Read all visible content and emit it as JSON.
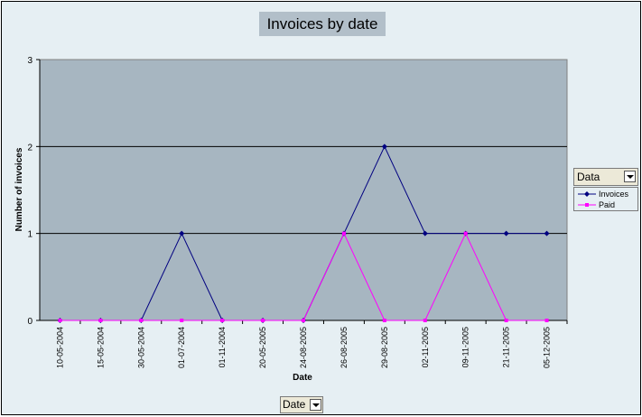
{
  "chart_data": {
    "type": "line",
    "title": "Invoices by date",
    "xlabel": "Date",
    "ylabel": "Number of invoices",
    "categories": [
      "10-05-2004",
      "15-05-2004",
      "30-05-2004",
      "01-07-2004",
      "01-11-2004",
      "20-05-2005",
      "24-08-2005",
      "26-08-2005",
      "29-08-2005",
      "02-11-2005",
      "09-11-2005",
      "21-11-2005",
      "05-12-2005"
    ],
    "ylim": [
      0,
      3
    ],
    "yticks": [
      "0",
      "1",
      "2",
      "3"
    ],
    "grid": true,
    "legend_position": "right",
    "series": [
      {
        "name": "Invoices",
        "values": [
          0,
          0,
          0,
          1,
          0,
          0,
          0,
          1,
          2,
          1,
          1,
          1,
          1
        ],
        "color": "#000080",
        "marker": "diamond"
      },
      {
        "name": "Paid",
        "values": [
          0,
          0,
          0,
          0,
          0,
          0,
          0,
          1,
          0,
          0,
          1,
          0,
          0
        ],
        "color": "#ff00ff",
        "marker": "square"
      }
    ]
  },
  "legend_field": "Data",
  "x_field": "Date",
  "colors": {
    "plot_bg": "#a7b6c1",
    "chart_bg": "#e6eff3",
    "title_bg": "#b2bfc9"
  }
}
